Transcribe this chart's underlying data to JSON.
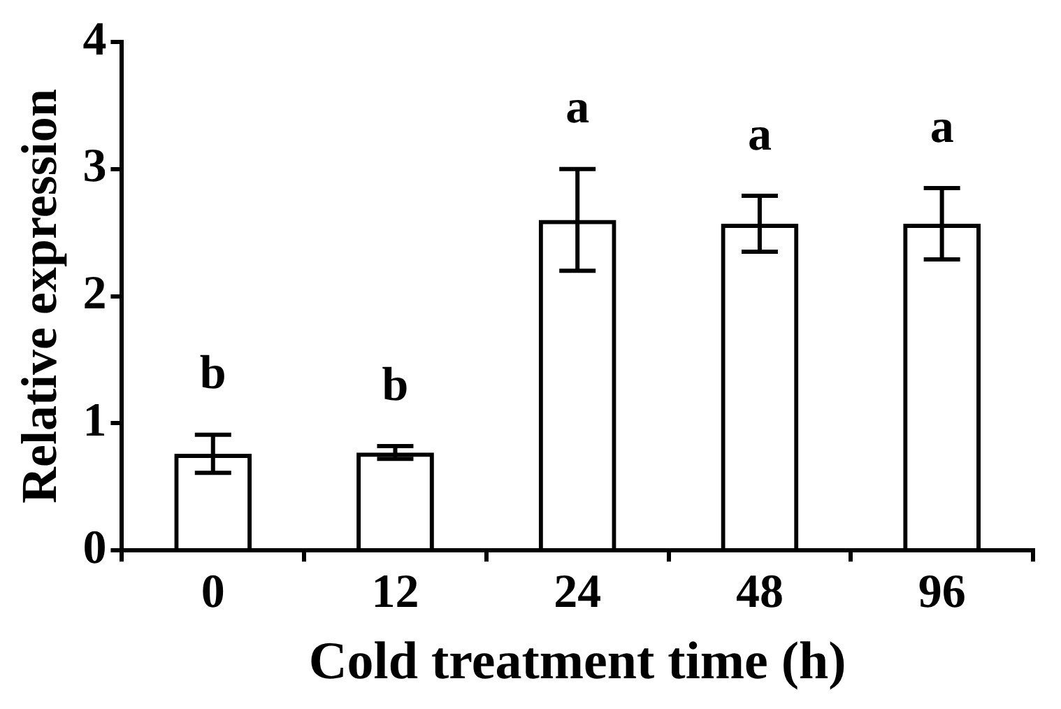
{
  "chart_data": {
    "type": "bar",
    "xlabel": "Cold treatment time (h)",
    "ylabel": "Relative expression",
    "categories": [
      "0",
      "12",
      "24",
      "48",
      "96"
    ],
    "values": [
      0.76,
      0.77,
      2.6,
      2.57,
      2.57
    ],
    "errors": [
      0.15,
      0.05,
      0.4,
      0.22,
      0.28
    ],
    "color": "#000000",
    "ylim": [
      0,
      4
    ],
    "yticks": [
      0,
      1,
      2,
      3,
      4
    ],
    "grid": false,
    "legend": false,
    "annotations": [
      "b",
      "b",
      "a",
      "a",
      "a"
    ]
  }
}
